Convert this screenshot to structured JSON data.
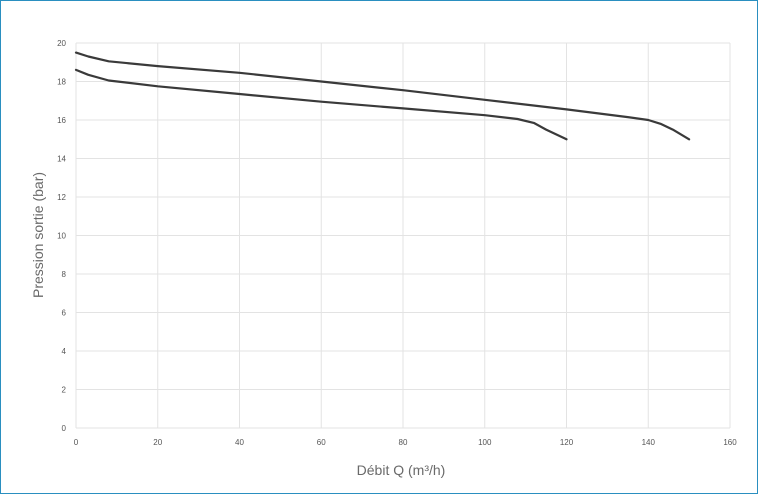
{
  "chart_data": {
    "type": "line",
    "title": "",
    "xlabel": "Débit Q (m³/h)",
    "ylabel": "Pression sortie (bar)",
    "xlim": [
      0,
      160
    ],
    "ylim": [
      0,
      20
    ],
    "x_ticks": [
      "0",
      "20",
      "40",
      "60",
      "80",
      "100",
      "120",
      "140",
      "160"
    ],
    "y_ticks": [
      "0",
      "2",
      "4",
      "6",
      "8",
      "10",
      "12",
      "14",
      "16",
      "18",
      "20"
    ],
    "grid": true,
    "legend": "none",
    "series": [
      {
        "color": "#3a3a3a",
        "points": [
          [
            0,
            19.5
          ],
          [
            3,
            19.3
          ],
          [
            8,
            19.05
          ],
          [
            20,
            18.8
          ],
          [
            40,
            18.45
          ],
          [
            60,
            18.0
          ],
          [
            80,
            17.55
          ],
          [
            100,
            17.05
          ],
          [
            120,
            16.55
          ],
          [
            135,
            16.15
          ],
          [
            140,
            16.0
          ],
          [
            143,
            15.8
          ],
          [
            146,
            15.5
          ],
          [
            150,
            15.0
          ]
        ]
      },
      {
        "color": "#3a3a3a",
        "points": [
          [
            0,
            18.6
          ],
          [
            3,
            18.35
          ],
          [
            8,
            18.05
          ],
          [
            20,
            17.75
          ],
          [
            40,
            17.35
          ],
          [
            60,
            16.95
          ],
          [
            80,
            16.6
          ],
          [
            100,
            16.25
          ],
          [
            108,
            16.05
          ],
          [
            112,
            15.85
          ],
          [
            115,
            15.5
          ],
          [
            120,
            15.0
          ]
        ]
      }
    ]
  }
}
